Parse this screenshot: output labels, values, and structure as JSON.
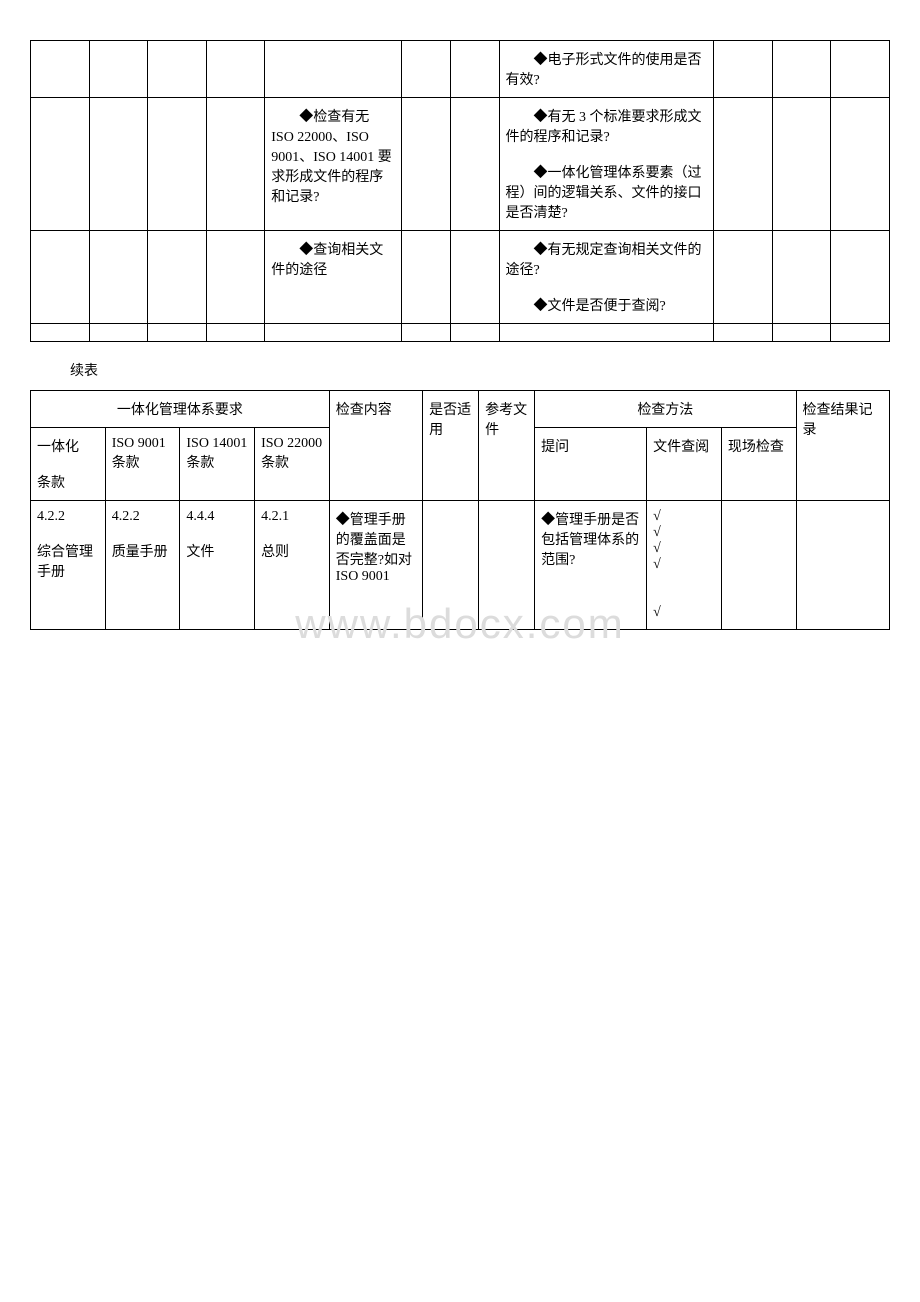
{
  "table1": {
    "rows": [
      {
        "c0": "",
        "c1": "",
        "c2": "",
        "c3": "",
        "content": "",
        "c5": "",
        "c6": "",
        "question": "　　◆电子形式文件的使用是否有效?",
        "c8": "",
        "c9": "",
        "c10": ""
      },
      {
        "c0": "",
        "c1": "",
        "c2": "",
        "c3": "",
        "content": "　　◆检查有无 ISO 22000、ISO 9001、ISO 14001 要求形成文件的程序和记录?",
        "c5": "",
        "c6": "",
        "question": "　　◆有无 3 个标准要求形成文件的程序和记录?\n\n　　◆一体化管理体系要素（过程）间的逻辑关系、文件的接口是否清楚?",
        "c8": "",
        "c9": "",
        "c10": ""
      },
      {
        "c0": "",
        "c1": "",
        "c2": "",
        "c3": "",
        "content": "　　◆查询相关文件的途径",
        "c5": "",
        "c6": "",
        "question": "　　◆有无规定查询相关文件的途径?\n\n　　◆文件是否便于查阅?",
        "c8": "",
        "c9": "",
        "c10": ""
      }
    ],
    "blankRow": [
      "",
      "",
      "",
      "",
      "",
      "",
      "",
      "",
      "",
      "",
      "",
      ""
    ]
  },
  "continueLabel": "续表",
  "watermark": "www.bdocx.com",
  "table2": {
    "headerTop": {
      "group1": "一体化管理体系要求",
      "group2": "检查方法"
    },
    "header": {
      "h1": "一体化\n\n条款",
      "h2": "ISO 9001\n条款",
      "h3": "ISO 14001\n条款",
      "h4": "ISO 22000\n条款",
      "h5": "检查内容",
      "h6": "是否适用",
      "h7": "参考文件",
      "h8": "提问",
      "h9": "文件查阅",
      "h10": "现场检查",
      "h11": "检查结果记录"
    },
    "row1": {
      "c1": "4.2.2\n\n综合管理手册",
      "c2": "4.2.2\n\n质量手册",
      "c3": "4.4.4\n\n文件",
      "c4": "4.2.1\n\n总则",
      "c5": "◆管理手册的覆盖面是否完整?如对 ISO 9001",
      "c6": "",
      "c7": "",
      "c8": "◆管理手册是否包括管理体系的范围?",
      "c9": "√\n√\n√\n√\n\n\n√",
      "c10": "",
      "c11": ""
    }
  }
}
